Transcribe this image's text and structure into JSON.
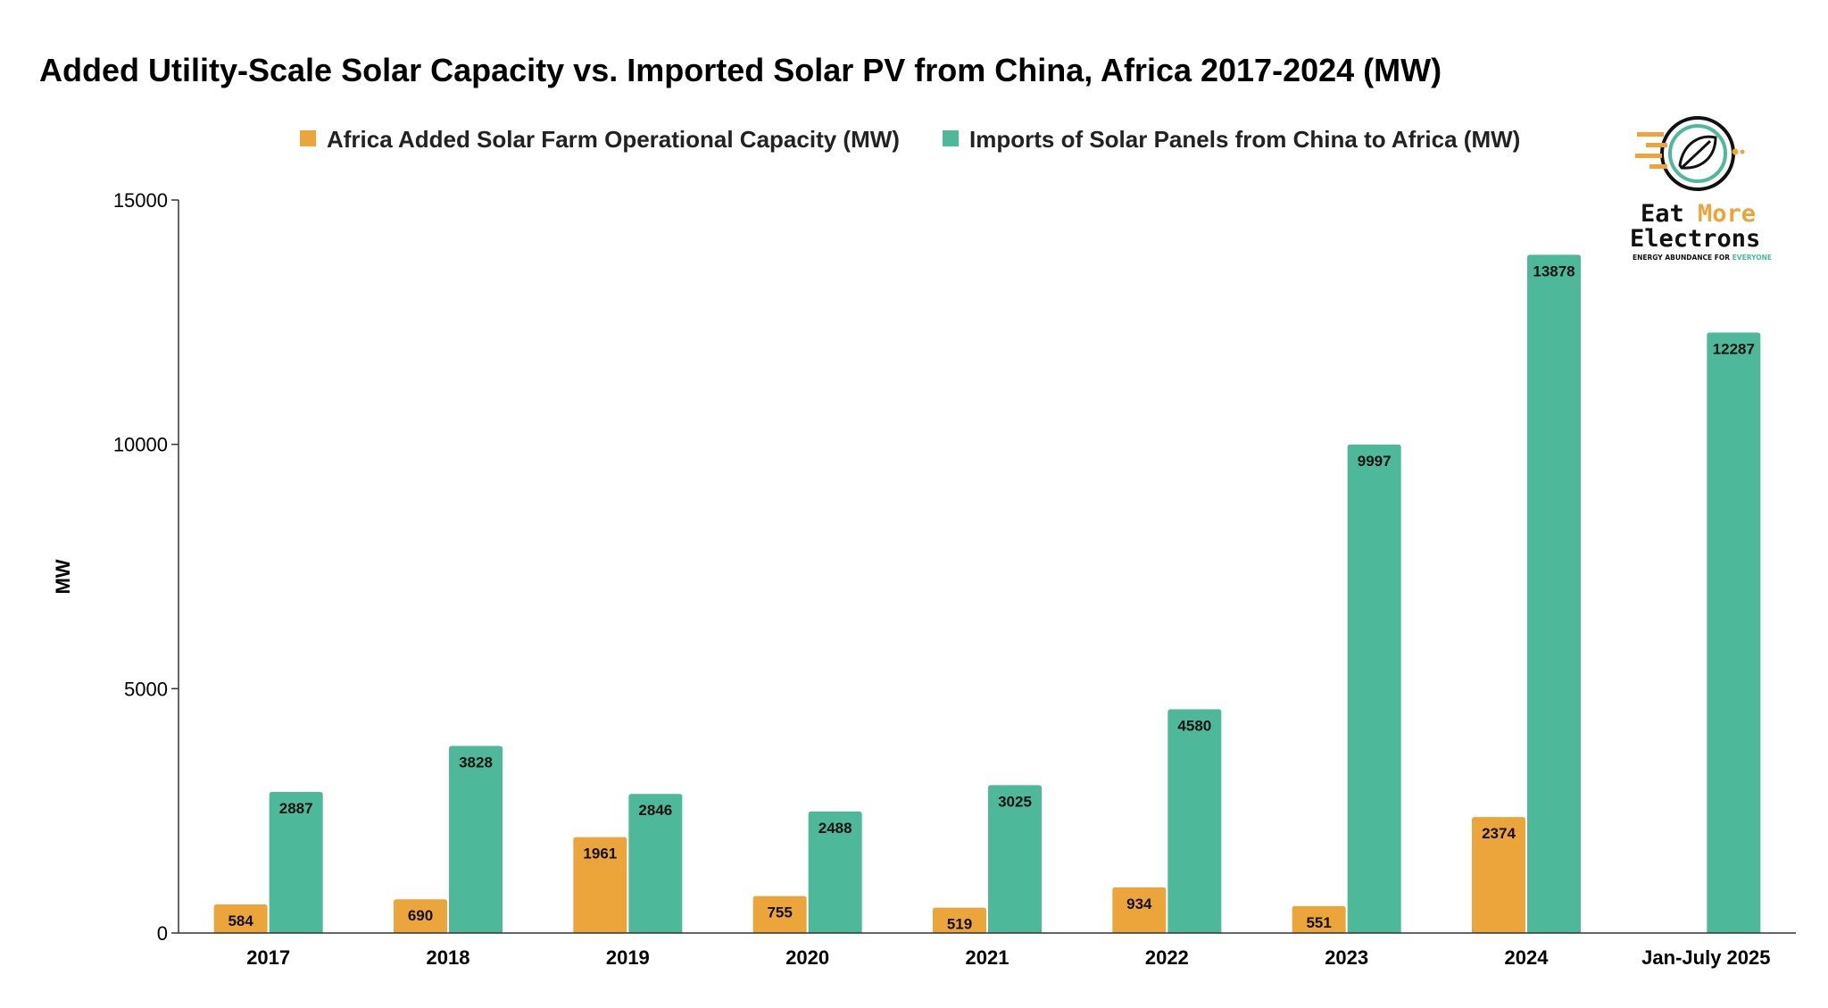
{
  "chart_data": {
    "type": "bar",
    "title": "Added Utility-Scale Solar Capacity vs. Imported Solar PV from China, Africa 2017-2024 (MW)",
    "xlabel": "",
    "ylabel": "MW",
    "ylim": [
      0,
      15000
    ],
    "yticks": [
      0,
      5000,
      10000,
      15000
    ],
    "legend_position": "top-center",
    "grid": false,
    "categories": [
      "2017",
      "2018",
      "2019",
      "2020",
      "2021",
      "2022",
      "2023",
      "2024",
      "Jan-July 2025"
    ],
    "series": [
      {
        "name": "Africa Added Solar Farm Operational Capacity (MW)",
        "color": "#EBA53B",
        "values": [
          584,
          690,
          1961,
          755,
          519,
          934,
          551,
          2374,
          null
        ]
      },
      {
        "name": "Imports of Solar Panels from China to Africa (MW)",
        "color": "#4DB99A",
        "values": [
          2887,
          3828,
          2846,
          2488,
          3025,
          4580,
          9997,
          13878,
          12287
        ]
      }
    ]
  },
  "logo": {
    "word1": "Eat",
    "word2": "More",
    "word3": "Electrons",
    "tagline_main": "ENERGY ABUNDANCE FOR ",
    "tagline_accent": "EVERYONE",
    "accent_color": "#EBA53B",
    "green_color": "#4DB99A"
  }
}
